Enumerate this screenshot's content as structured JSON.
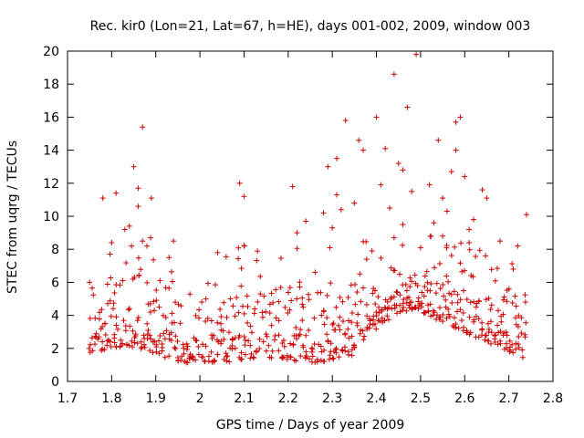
{
  "chart_data": {
    "type": "scatter",
    "title": "Rec. kir0 (Lon=21, Lat=67, h=HE), days 001-002, 2009, window 003",
    "xlabel": "GPS time / Days of year 2009",
    "ylabel": "STEC from uqrg / TECUs",
    "xlim": [
      1.7,
      2.8
    ],
    "ylim": [
      0,
      20
    ],
    "xticks": [
      "1.7",
      "1.8",
      "1.9",
      "2",
      "2.1",
      "2.2",
      "2.3",
      "2.4",
      "2.5",
      "2.6",
      "2.7",
      "2.8"
    ],
    "yticks": [
      "0",
      "2",
      "4",
      "6",
      "8",
      "10",
      "12",
      "14",
      "16",
      "18",
      "20"
    ],
    "grid": false,
    "marker": "+",
    "series_color": "#cc0000",
    "outliers": [
      [
        1.75,
        6.0
      ],
      [
        1.78,
        11.1
      ],
      [
        1.8,
        8.4
      ],
      [
        1.81,
        11.4
      ],
      [
        1.83,
        9.2
      ],
      [
        1.84,
        9.4
      ],
      [
        1.85,
        13.0
      ],
      [
        1.86,
        11.7
      ],
      [
        1.86,
        10.6
      ],
      [
        1.87,
        8.5
      ],
      [
        1.87,
        15.4
      ],
      [
        1.88,
        8.2
      ],
      [
        1.89,
        11.1
      ],
      [
        1.93,
        7.5
      ],
      [
        1.94,
        8.5
      ],
      [
        2.04,
        7.8
      ],
      [
        2.09,
        12.0
      ],
      [
        2.1,
        11.2
      ],
      [
        2.1,
        8.2
      ],
      [
        2.21,
        11.8
      ],
      [
        2.22,
        9.0
      ],
      [
        2.24,
        9.7
      ],
      [
        2.28,
        10.2
      ],
      [
        2.29,
        13.0
      ],
      [
        2.3,
        9.3
      ],
      [
        2.31,
        13.5
      ],
      [
        2.31,
        11.3
      ],
      [
        2.32,
        10.4
      ],
      [
        2.33,
        15.8
      ],
      [
        2.35,
        10.8
      ],
      [
        2.36,
        14.6
      ],
      [
        2.37,
        14.0
      ],
      [
        2.39,
        7.9
      ],
      [
        2.4,
        16.0
      ],
      [
        2.41,
        11.9
      ],
      [
        2.42,
        14.1
      ],
      [
        2.43,
        10.5
      ],
      [
        2.44,
        18.6
      ],
      [
        2.45,
        13.2
      ],
      [
        2.46,
        12.8
      ],
      [
        2.46,
        9.5
      ],
      [
        2.47,
        16.6
      ],
      [
        2.49,
        19.8
      ],
      [
        2.48,
        11.5
      ],
      [
        2.52,
        11.9
      ],
      [
        2.53,
        9.6
      ],
      [
        2.54,
        14.6
      ],
      [
        2.55,
        11.1
      ],
      [
        2.56,
        10.3
      ],
      [
        2.57,
        12.7
      ],
      [
        2.58,
        15.7
      ],
      [
        2.59,
        16.0
      ],
      [
        2.58,
        14.0
      ],
      [
        2.6,
        12.4
      ],
      [
        2.61,
        8.4
      ],
      [
        2.62,
        9.8
      ],
      [
        2.64,
        11.6
      ],
      [
        2.65,
        11.1
      ],
      [
        2.68,
        8.5
      ],
      [
        2.71,
        6.8
      ],
      [
        2.72,
        8.2
      ],
      [
        2.74,
        10.1
      ],
      [
        2.61,
        9.2
      ],
      [
        2.55,
        8.8
      ],
      [
        2.5,
        8.1
      ],
      [
        2.44,
        8.7
      ]
    ]
  }
}
